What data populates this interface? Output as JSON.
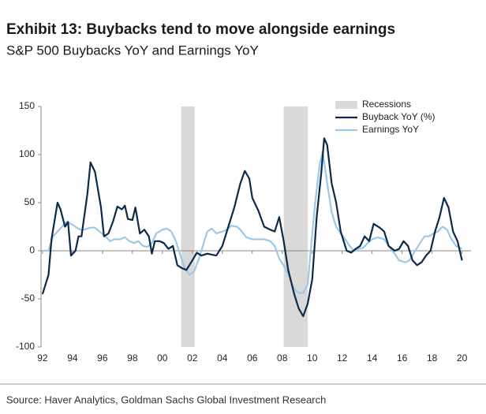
{
  "chart_data": {
    "type": "line",
    "title": "Exhibit 13: Buybacks tend to move alongside earnings",
    "subtitle": "S&P 500 Buybacks YoY and Earnings YoY",
    "source": "Source: Haver Analytics, Goldman Sachs Global Investment Research",
    "xlim": [
      1991.9,
      2020.6
    ],
    "xticks": [
      {
        "value": 1992,
        "label": "92"
      },
      {
        "value": 1994,
        "label": "94"
      },
      {
        "value": 1996,
        "label": "96"
      },
      {
        "value": 1998,
        "label": "98"
      },
      {
        "value": 2000,
        "label": "00"
      },
      {
        "value": 2002,
        "label": "02"
      },
      {
        "value": 2004,
        "label": "04"
      },
      {
        "value": 2006,
        "label": "06"
      },
      {
        "value": 2008,
        "label": "08"
      },
      {
        "value": 2010,
        "label": "10"
      },
      {
        "value": 2012,
        "label": "12"
      },
      {
        "value": 2014,
        "label": "14"
      },
      {
        "value": 2016,
        "label": "16"
      },
      {
        "value": 2018,
        "label": "18"
      },
      {
        "value": 2020,
        "label": "20"
      }
    ],
    "ylim": [
      -100,
      150
    ],
    "yticks": [
      -100,
      -50,
      0,
      50,
      100,
      150
    ],
    "legend": "top-right",
    "recessions": {
      "name": "Recessions",
      "color": "#d9d9d9",
      "periods": [
        [
          2001.25,
          2002.15
        ],
        [
          2008.1,
          2009.7
        ]
      ]
    },
    "series": [
      {
        "name": "Buyback YoY (%)",
        "color": "#0b2a4a",
        "x": [
          1992.0,
          1992.4,
          1992.6,
          1993.0,
          1993.2,
          1993.5,
          1993.7,
          1993.9,
          1994.2,
          1994.4,
          1994.6,
          1995.0,
          1995.2,
          1995.5,
          1995.9,
          1996.1,
          1996.4,
          1996.7,
          1997.0,
          1997.3,
          1997.5,
          1997.7,
          1998.0,
          1998.2,
          1998.5,
          1998.8,
          1999.1,
          1999.3,
          1999.5,
          1999.8,
          2000.1,
          2000.4,
          2000.7,
          2001.0,
          2001.3,
          2001.6,
          2002.0,
          2002.3,
          2002.6,
          2003.0,
          2003.3,
          2003.6,
          2004.0,
          2004.4,
          2004.8,
          2005.2,
          2005.5,
          2005.8,
          2006.0,
          2006.4,
          2006.8,
          2007.2,
          2007.5,
          2007.8,
          2008.1,
          2008.4,
          2008.8,
          2009.1,
          2009.4,
          2009.7,
          2010.0,
          2010.3,
          2010.6,
          2010.8,
          2011.0,
          2011.3,
          2011.6,
          2011.9,
          2012.3,
          2012.6,
          2012.9,
          2013.2,
          2013.5,
          2013.8,
          2014.1,
          2014.5,
          2014.8,
          2015.1,
          2015.5,
          2015.8,
          2016.1,
          2016.4,
          2016.7,
          2017.0,
          2017.3,
          2017.6,
          2017.9,
          2018.2,
          2018.5,
          2018.8,
          2019.1,
          2019.4,
          2019.7,
          2020.0
        ],
        "values": [
          -45,
          -25,
          12,
          50,
          43,
          25,
          30,
          -5,
          0,
          15,
          15,
          60,
          92,
          82,
          45,
          15,
          18,
          30,
          46,
          43,
          47,
          33,
          32,
          45,
          18,
          22,
          15,
          -3,
          10,
          10,
          8,
          2,
          5,
          -15,
          -18,
          -20,
          -10,
          -2,
          -5,
          -3,
          -4,
          -5,
          5,
          25,
          45,
          70,
          83,
          75,
          55,
          42,
          25,
          22,
          20,
          35,
          10,
          -20,
          -45,
          -60,
          -68,
          -55,
          -30,
          35,
          80,
          117,
          110,
          70,
          50,
          20,
          0,
          -2,
          2,
          5,
          15,
          10,
          28,
          24,
          20,
          5,
          0,
          2,
          10,
          5,
          -10,
          -15,
          -12,
          -5,
          0,
          20,
          35,
          55,
          45,
          20,
          10,
          -10
        ]
      },
      {
        "name": "Earnings YoY",
        "color": "#9dc8e8",
        "x": [
          1992.0,
          1992.4,
          1992.7,
          1993.0,
          1993.3,
          1993.6,
          1993.9,
          1994.2,
          1994.5,
          1994.8,
          1995.2,
          1995.5,
          1995.8,
          1996.2,
          1996.5,
          1996.8,
          1997.2,
          1997.5,
          1997.8,
          1998.1,
          1998.4,
          1998.7,
          1999.0,
          1999.3,
          1999.6,
          2000.0,
          2000.3,
          2000.6,
          2000.9,
          2001.2,
          2001.5,
          2001.8,
          2002.1,
          2002.4,
          2002.7,
          2003.0,
          2003.3,
          2003.6,
          2004.0,
          2004.3,
          2004.6,
          2005.0,
          2005.3,
          2005.6,
          2006.0,
          2006.4,
          2006.8,
          2007.2,
          2007.5,
          2007.8,
          2008.2,
          2008.5,
          2008.8,
          2009.1,
          2009.4,
          2009.7,
          2009.9,
          2010.2,
          2010.5,
          2010.7,
          2011.0,
          2011.3,
          2011.6,
          2011.9,
          2012.2,
          2012.5,
          2012.8,
          2013.1,
          2013.4,
          2013.7,
          2014.0,
          2014.4,
          2014.8,
          2015.1,
          2015.5,
          2015.8,
          2016.2,
          2016.5,
          2016.8,
          2017.2,
          2017.5,
          2017.8,
          2018.1,
          2018.4,
          2018.7,
          2019.0,
          2019.3,
          2019.6,
          2020.0
        ],
        "values": [
          0,
          0,
          15,
          20,
          25,
          30,
          28,
          25,
          22,
          22,
          24,
          24,
          20,
          15,
          10,
          12,
          12,
          14,
          10,
          8,
          10,
          5,
          4,
          8,
          18,
          22,
          23,
          20,
          10,
          -5,
          -18,
          -25,
          -22,
          -10,
          5,
          20,
          23,
          18,
          20,
          22,
          26,
          25,
          20,
          14,
          12,
          12,
          12,
          10,
          5,
          -8,
          -18,
          -28,
          -40,
          -44,
          -44,
          -35,
          0,
          50,
          90,
          103,
          70,
          40,
          25,
          18,
          12,
          5,
          0,
          2,
          3,
          8,
          12,
          14,
          12,
          5,
          -3,
          -10,
          -12,
          -10,
          -2,
          8,
          15,
          15,
          18,
          20,
          25,
          22,
          12,
          5,
          2
        ]
      }
    ]
  }
}
